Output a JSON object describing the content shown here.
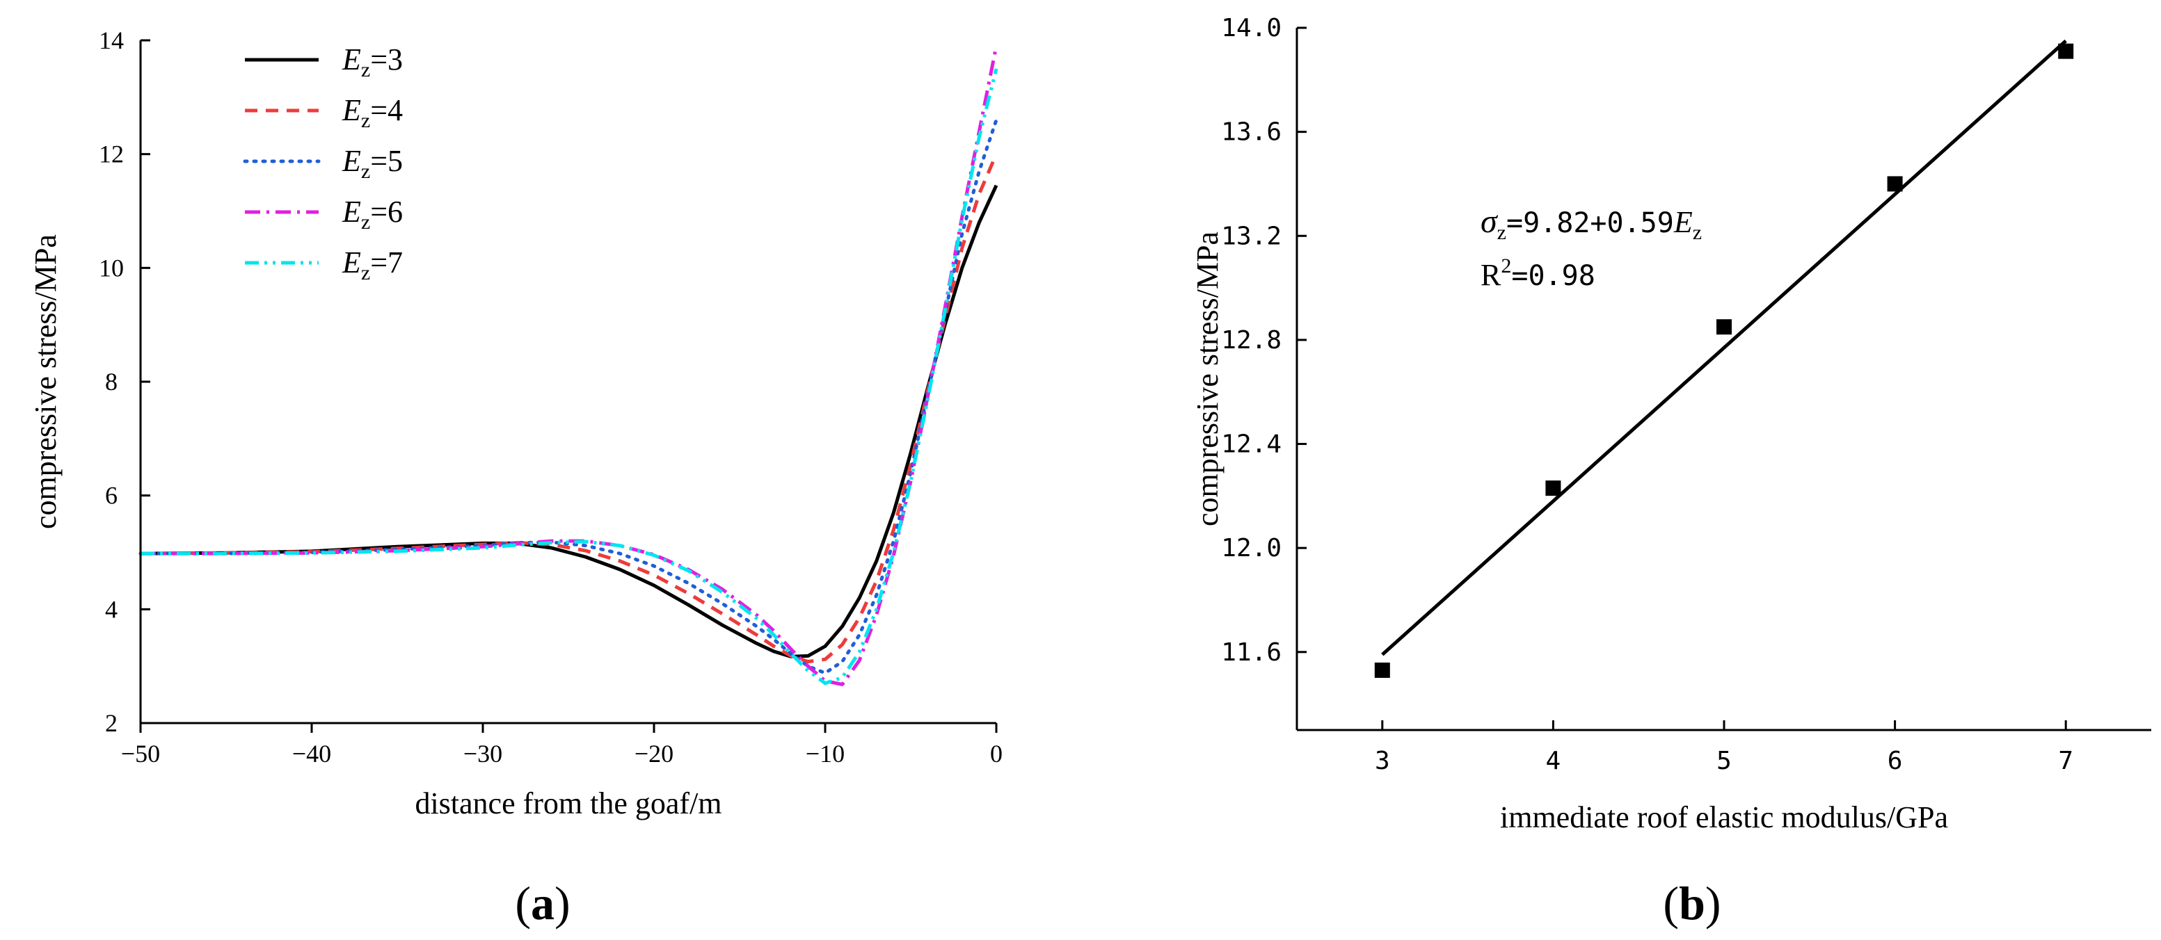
{
  "chart_data": [
    {
      "panel": "a",
      "type": "line",
      "title": "",
      "xlabel": "distance from the goaf/m",
      "ylabel": "compressive stress/MPa",
      "xlim": [
        -50,
        0
      ],
      "ylim": [
        2,
        14
      ],
      "xticks": [
        -50,
        -40,
        -30,
        -20,
        -10,
        0
      ],
      "yticks": [
        2,
        4,
        6,
        8,
        10,
        12,
        14
      ],
      "x": [
        -50,
        -45,
        -40,
        -35,
        -30,
        -28,
        -26,
        -24,
        -22,
        -20,
        -18,
        -16,
        -14,
        -13,
        -12,
        -11,
        -10,
        -9,
        -8,
        -7,
        -6,
        -5,
        -4,
        -3,
        -2,
        -1,
        0
      ],
      "series": [
        {
          "name": "3",
          "color": "#000000",
          "dash": "solid",
          "values": [
            4.98,
            4.99,
            5.02,
            5.1,
            5.16,
            5.16,
            5.08,
            4.92,
            4.7,
            4.42,
            4.08,
            3.72,
            3.4,
            3.26,
            3.17,
            3.18,
            3.35,
            3.7,
            4.2,
            4.85,
            5.7,
            6.75,
            7.9,
            9.0,
            10.0,
            10.8,
            11.45
          ]
        },
        {
          "name": "4",
          "color": "#ee3b3b",
          "dash": "dashed",
          "values": [
            4.98,
            4.99,
            5.01,
            5.07,
            5.14,
            5.17,
            5.14,
            5.03,
            4.85,
            4.6,
            4.28,
            3.92,
            3.55,
            3.35,
            3.18,
            3.08,
            3.12,
            3.38,
            3.85,
            4.5,
            5.4,
            6.55,
            7.85,
            9.1,
            10.35,
            11.3,
            12.0
          ]
        },
        {
          "name": "5",
          "color": "#1f5fd6",
          "dash": "dotted",
          "values": [
            4.98,
            4.98,
            5.0,
            5.05,
            5.12,
            5.17,
            5.18,
            5.12,
            4.98,
            4.76,
            4.46,
            4.1,
            3.7,
            3.47,
            3.22,
            3.0,
            2.88,
            3.08,
            3.55,
            4.25,
            5.2,
            6.4,
            7.8,
            9.2,
            10.6,
            11.7,
            12.6
          ]
        },
        {
          "name": "6",
          "color": "#e020e0",
          "dash": "dashdot",
          "values": [
            4.98,
            4.98,
            4.99,
            5.03,
            5.1,
            5.15,
            5.2,
            5.2,
            5.12,
            4.96,
            4.7,
            4.35,
            3.9,
            3.62,
            3.3,
            3.0,
            2.74,
            2.68,
            3.1,
            3.9,
            4.95,
            6.25,
            7.75,
            9.3,
            10.9,
            12.4,
            13.9
          ]
        },
        {
          "name": "7",
          "color": "#00e5ee",
          "dash": "dashdotdot",
          "values": [
            4.98,
            4.98,
            4.99,
            5.02,
            5.08,
            5.13,
            5.17,
            5.19,
            5.12,
            4.95,
            4.68,
            4.3,
            3.84,
            3.55,
            3.22,
            2.92,
            2.7,
            2.8,
            3.25,
            4.0,
            5.0,
            6.25,
            7.7,
            9.25,
            10.85,
            12.3,
            13.5
          ]
        }
      ],
      "legend": {
        "position": "top-left",
        "symbol": "E",
        "subscript": "z",
        "prefix": "="
      }
    },
    {
      "panel": "b",
      "type": "scatter",
      "title": "",
      "xlabel": "immediate roof elastic modulus/GPa",
      "ylabel": "compressive stress/MPa",
      "xlim": [
        2.5,
        7.5
      ],
      "ylim": [
        11.3,
        14.0
      ],
      "xticks": [
        "3",
        "4",
        "5",
        "6",
        "7"
      ],
      "yticks": [
        "11.6",
        "12.0",
        "12.4",
        "12.8",
        "13.2",
        "13.6",
        "14.0"
      ],
      "x": [
        3,
        4,
        5,
        6,
        7
      ],
      "values": [
        11.53,
        12.23,
        12.85,
        13.4,
        13.91
      ],
      "fit": {
        "intercept": 9.82,
        "slope": 0.59,
        "x_range": [
          3,
          7
        ]
      },
      "annotation": {
        "eq_symbol": "σ",
        "eq_sub": "z",
        "eq_body": "=9.82+0.59",
        "eq_var": "E",
        "eq_var_sub": "z",
        "r2_label": "R",
        "r2_sup": "2",
        "r2_value": "=0.98"
      }
    }
  ],
  "panels": {
    "a": {
      "open": "(",
      "letter": "a",
      "close": ")"
    },
    "b": {
      "open": "(",
      "letter": "b",
      "close": ")"
    }
  }
}
